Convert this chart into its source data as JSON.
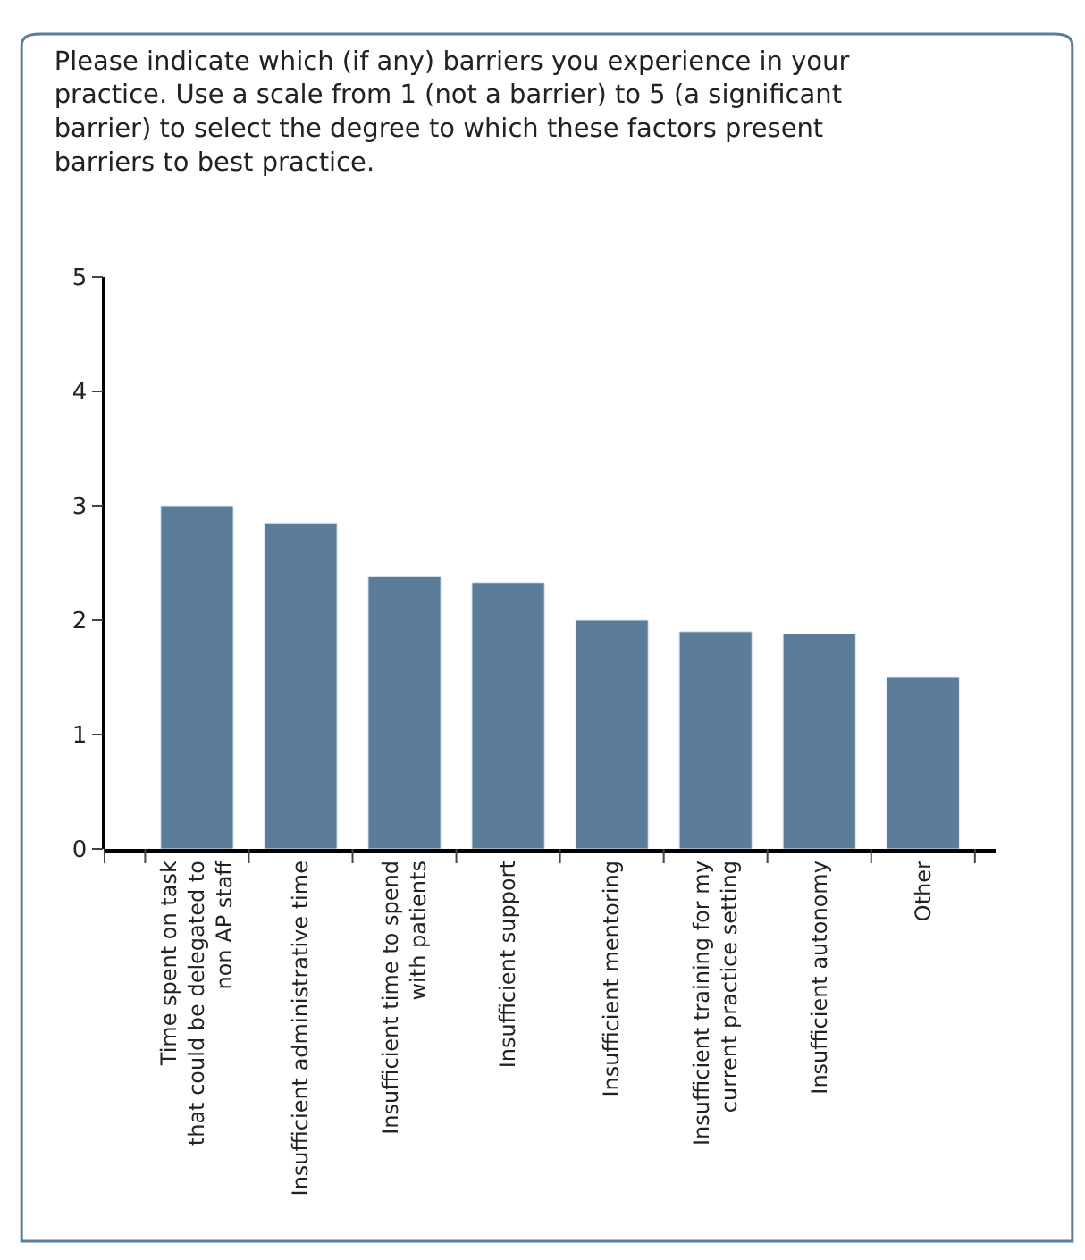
{
  "chart_data": {
    "type": "bar",
    "title": "Please indicate which (if any) barriers you experience in your practice. Use a scale from 1 (not a barrier) to 5 (a significant barrier) to select the degree to which these factors present barriers to best practice.",
    "categories": [
      "Time spent on task\nthat could be delegated to\nnon AP staff",
      "Insufficient administrative time",
      "Insufficient time to spend\nwith patients",
      "Insufficient support",
      "Insufficient mentoring",
      "Insufficient training for my\ncurrent practice setting",
      "Insufficient autonomy",
      "Other"
    ],
    "series": [
      {
        "color": "#5b7d99",
        "values": [
          3.0,
          2.85,
          2.38,
          2.33,
          2.0,
          1.9,
          1.88,
          1.5
        ]
      }
    ],
    "ylim": [
      0,
      5
    ],
    "yticks": [
      0,
      1,
      2,
      3,
      4,
      5
    ]
  }
}
